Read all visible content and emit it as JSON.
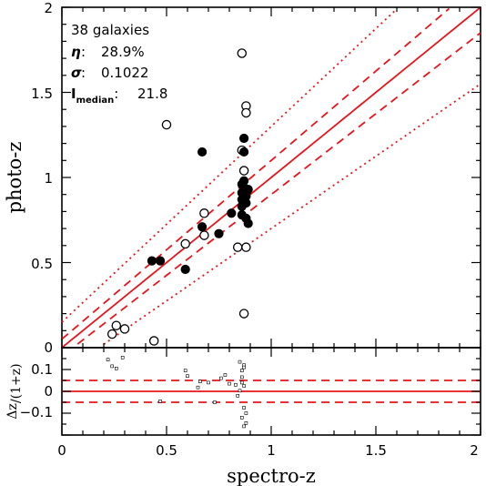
{
  "chart_data": [
    {
      "type": "scatter",
      "xlabel": "spectro-z",
      "ylabel": "photo-z",
      "xlim": [
        0,
        2
      ],
      "ylim": [
        0,
        2
      ],
      "x_ticks": [
        "0",
        "0.5",
        "1",
        "1.5",
        "2"
      ],
      "y_ticks": [
        "0.5",
        "1",
        "1.5",
        "2"
      ],
      "y_zero_label": "0",
      "annotations": {
        "count": "38 galaxies",
        "eta_symbol": "η",
        "eta_value": "28.9%",
        "sigma_symbol": "σ",
        "sigma_value": "0.1022",
        "imed_I": "I",
        "imed_sub": "median",
        "imed_value": "21.8"
      },
      "lines": {
        "solid": "y = x",
        "dashed": "y = x ± 0.05(1+x)",
        "dotted": "y = x ± 0.15(1+x)",
        "color": "#e8141c"
      },
      "filled_points": [
        [
          0.43,
          0.51
        ],
        [
          0.47,
          0.51
        ],
        [
          0.59,
          0.46
        ],
        [
          0.67,
          0.71
        ],
        [
          0.67,
          1.15
        ],
        [
          0.75,
          0.67
        ],
        [
          0.81,
          0.79
        ],
        [
          0.86,
          0.78
        ],
        [
          0.86,
          0.83
        ],
        [
          0.86,
          0.87
        ],
        [
          0.86,
          0.91
        ],
        [
          0.86,
          0.96
        ],
        [
          0.87,
          0.94
        ],
        [
          0.87,
          0.98
        ],
        [
          0.87,
          1.23
        ],
        [
          0.87,
          1.15
        ],
        [
          0.88,
          0.89
        ],
        [
          0.88,
          0.76
        ],
        [
          0.88,
          0.85
        ],
        [
          0.89,
          0.93
        ],
        [
          0.89,
          0.73
        ]
      ],
      "open_points": [
        [
          0.24,
          0.08
        ],
        [
          0.26,
          0.13
        ],
        [
          0.3,
          0.11
        ],
        [
          0.44,
          0.04
        ],
        [
          0.5,
          1.31
        ],
        [
          0.59,
          0.61
        ],
        [
          0.68,
          0.79
        ],
        [
          0.68,
          0.66
        ],
        [
          0.84,
          0.59
        ],
        [
          0.86,
          1.73
        ],
        [
          0.86,
          1.16
        ],
        [
          0.87,
          1.04
        ],
        [
          0.87,
          0.2
        ],
        [
          0.88,
          0.59
        ],
        [
          0.88,
          1.42
        ],
        [
          0.88,
          1.38
        ],
        [
          0.88,
          0.91
        ]
      ]
    },
    {
      "type": "scatter",
      "xlabel": "spectro-z",
      "ylabel": "Δz/(1+z)",
      "ylabel_parts": [
        "Δz",
        "/(1+z)"
      ],
      "xlim": [
        0,
        2
      ],
      "ylim": [
        -0.2,
        0.2
      ],
      "x_ticks": [
        "0",
        "0.5",
        "1",
        "1.5",
        "2"
      ],
      "y_ticks": [
        "0.1",
        "0",
        "−0.1"
      ],
      "lines": {
        "solid": 0,
        "dashed": [
          0.05,
          -0.05
        ],
        "color": "#e8141c"
      },
      "points": [
        [
          0.22,
          0.145
        ],
        [
          0.24,
          0.115
        ],
        [
          0.26,
          0.105
        ],
        [
          0.29,
          0.155
        ],
        [
          0.47,
          -0.045
        ],
        [
          0.59,
          0.095
        ],
        [
          0.6,
          0.07
        ],
        [
          0.65,
          0.018
        ],
        [
          0.66,
          0.045
        ],
        [
          0.7,
          0.04
        ],
        [
          0.73,
          -0.05
        ],
        [
          0.76,
          0.06
        ],
        [
          0.78,
          0.075
        ],
        [
          0.8,
          0.035
        ],
        [
          0.83,
          0.03
        ],
        [
          0.84,
          -0.02
        ],
        [
          0.85,
          0.003
        ],
        [
          0.85,
          0.135
        ],
        [
          0.86,
          0.095
        ],
        [
          0.86,
          0.065
        ],
        [
          0.86,
          0.04
        ],
        [
          0.86,
          -0.12
        ],
        [
          0.87,
          0.12
        ],
        [
          0.87,
          0.11
        ],
        [
          0.87,
          0.025
        ],
        [
          0.87,
          -0.075
        ],
        [
          0.87,
          -0.16
        ],
        [
          0.88,
          -0.145
        ],
        [
          0.88,
          -0.1
        ]
      ]
    }
  ]
}
